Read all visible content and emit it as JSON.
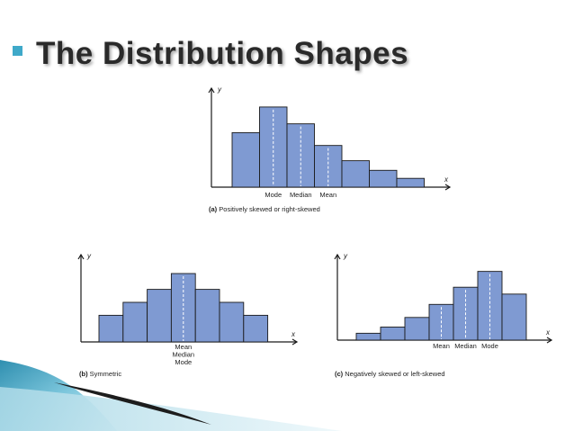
{
  "slide": {
    "title": "The Distribution Shapes"
  },
  "colors": {
    "bar_fill": "#7f9ad2",
    "accent_teal": "#3fa9c9",
    "title_text": "#2a2a2a"
  },
  "chart_data": [
    {
      "type": "bar",
      "caption_letter": "(a)",
      "caption_text": "Positively skewed or right-skewed",
      "xlabel": "x",
      "ylabel": "y",
      "values": [
        68,
        100,
        79,
        52,
        33,
        21,
        11
      ],
      "ylim": [
        0,
        110
      ],
      "markers": [
        {
          "label": "Mode",
          "bar_position": 1.5
        },
        {
          "label": "Median",
          "bar_position": 2.5
        },
        {
          "label": "Mean",
          "bar_position": 3.5
        }
      ],
      "grid": false
    },
    {
      "type": "bar",
      "caption_letter": "(b)",
      "caption_text": "Symmetric",
      "xlabel": "x",
      "ylabel": "y",
      "values": [
        37,
        55,
        73,
        95,
        73,
        55,
        37
      ],
      "ylim": [
        0,
        110
      ],
      "markers": [
        {
          "label": "Mean",
          "bar_position": 3.5
        },
        {
          "label": "Median",
          "bar_position": 3.5
        },
        {
          "label": "Mode",
          "bar_position": 3.5
        }
      ],
      "grid": false
    },
    {
      "type": "bar",
      "caption_letter": "(c)",
      "caption_text": "Negatively skewed or left-skewed",
      "xlabel": "x",
      "ylabel": "y",
      "values": [
        10,
        19,
        33,
        52,
        77,
        100,
        67
      ],
      "ylim": [
        0,
        110
      ],
      "markers": [
        {
          "label": "Mean",
          "bar_position": 3.5
        },
        {
          "label": "Median",
          "bar_position": 4.5
        },
        {
          "label": "Mode",
          "bar_position": 5.5
        }
      ],
      "grid": false
    }
  ]
}
